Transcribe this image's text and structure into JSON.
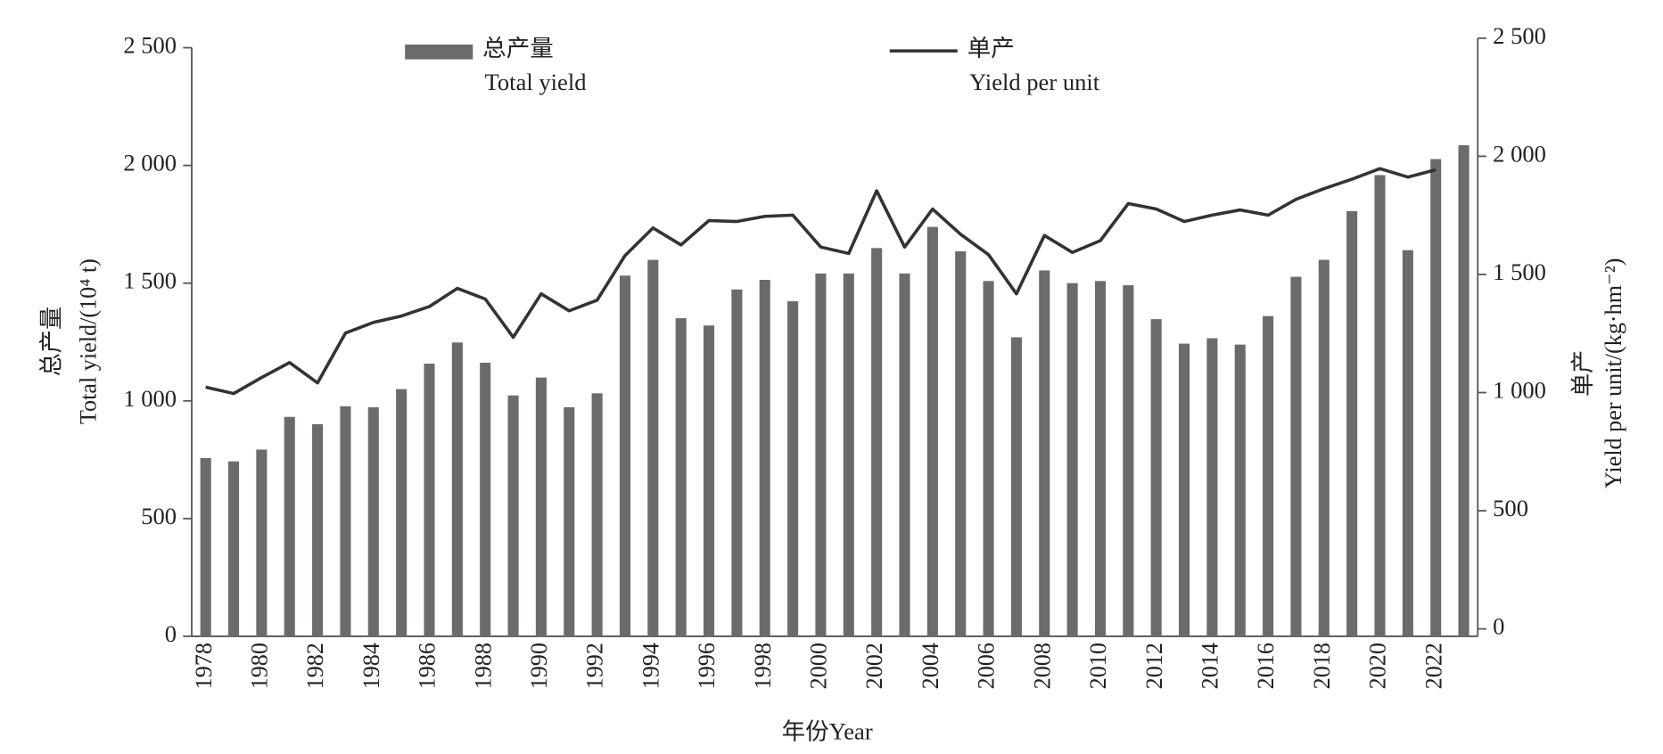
{
  "chart_data": {
    "type": "bar-line",
    "xlabel": "年份Year",
    "ylabel": [
      "总产量",
      "Total yield/(10⁴ t)"
    ],
    "y2label": [
      "单产",
      "Yield per unit/(kg·hm⁻²)"
    ],
    "x": [
      1978,
      1979,
      1980,
      1981,
      1982,
      1983,
      1984,
      1985,
      1986,
      1987,
      1988,
      1989,
      1990,
      1991,
      1992,
      1993,
      1994,
      1995,
      1996,
      1997,
      1998,
      1999,
      2000,
      2001,
      2002,
      2003,
      2004,
      2005,
      2006,
      2007,
      2008,
      2009,
      2010,
      2011,
      2012,
      2013,
      2014,
      2015,
      2016,
      2017,
      2018,
      2019,
      2020,
      2021,
      2022,
      2023
    ],
    "xlim": [
      1977.5,
      2023.5
    ],
    "xticks": [
      1978,
      1980,
      1982,
      1984,
      1986,
      1988,
      1990,
      1992,
      1994,
      1996,
      1998,
      2000,
      2002,
      2004,
      2006,
      2008,
      2010,
      2012,
      2014,
      2016,
      2018,
      2020,
      2022
    ],
    "ylim": [
      0,
      2500
    ],
    "yticks": [
      0,
      500,
      {
        "value": 1000,
        "label": "1 000"
      },
      {
        "value": 1500,
        "label": "1 500"
      },
      {
        "value": 2000,
        "label": "2 000"
      },
      {
        "value": 2500,
        "label": "2 500"
      }
    ],
    "y2lim": [
      0,
      2500
    ],
    "y2ticks": [
      0,
      500,
      {
        "value": 1000,
        "label": "1 000"
      },
      {
        "value": 1500,
        "label": "1 500"
      },
      {
        "value": 2000,
        "label": "2 000"
      },
      {
        "value": 2500,
        "label": "2 500"
      }
    ],
    "series": [
      {
        "name": "总产量",
        "name_en": "Total yield",
        "type": "bar",
        "color": "#6d6a6b",
        "values": [
          757,
          743,
          793,
          932,
          901,
          977,
          973,
          1050,
          1158,
          1248,
          1162,
          1023,
          1099,
          973,
          1032,
          1532,
          1599,
          1351,
          1320,
          1473,
          1514,
          1423,
          1541,
          1541,
          1649,
          1541,
          1739,
          1635,
          1509,
          1270,
          1554,
          1500,
          1509,
          1491,
          1347,
          1243,
          1266,
          1239,
          1360,
          1527,
          1599,
          1806,
          1959,
          1640,
          2027,
          2086
        ]
      },
      {
        "name": "单产",
        "name_en": "Yield per unit",
        "type": "line",
        "axis": "y2",
        "color": "#333333",
        "values": [
          1023,
          996,
          1064,
          1127,
          1041,
          1252,
          1297,
          1324,
          1364,
          1441,
          1396,
          1234,
          1418,
          1346,
          1391,
          1580,
          1697,
          1625,
          1728,
          1724,
          1746,
          1751,
          1616,
          1589,
          1854,
          1616,
          1777,
          1670,
          1584,
          1418,
          1665,
          1593,
          1643,
          1800,
          1777,
          1724,
          1751,
          1773,
          1751,
          1818,
          1863,
          1903,
          1948,
          1912,
          1943,
          null
        ]
      }
    ]
  }
}
